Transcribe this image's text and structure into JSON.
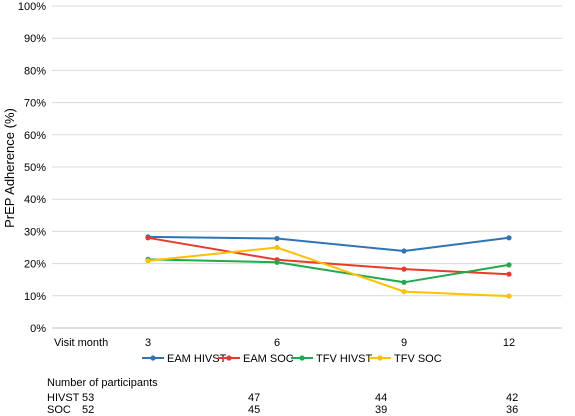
{
  "chart_data": {
    "type": "line",
    "title": "",
    "xlabel": "Visit month",
    "ylabel": "PrEP Adherence (%)",
    "categories": [
      "3",
      "6",
      "9",
      "12"
    ],
    "ylim": [
      0,
      100
    ],
    "yticks": [
      0,
      10,
      20,
      30,
      40,
      50,
      60,
      70,
      80,
      90,
      100
    ],
    "ytick_suffix": "%",
    "grid": "horizontal",
    "legend_position": "bottom",
    "series": [
      {
        "name": "EAM HIVST",
        "color": "#2E75B6",
        "values": [
          28.3,
          27.8,
          23.9,
          28.0
        ]
      },
      {
        "name": "EAM SOC",
        "color": "#E8392B",
        "values": [
          28.0,
          21.2,
          18.3,
          16.7
        ]
      },
      {
        "name": "TFV HIVST",
        "color": "#1FAA4B",
        "values": [
          21.3,
          20.4,
          14.2,
          19.6
        ]
      },
      {
        "name": "TFV SOC",
        "color": "#FFC000",
        "values": [
          20.9,
          25.0,
          11.3,
          9.9
        ]
      }
    ]
  },
  "participants": {
    "title": "Number of participants",
    "rows": [
      {
        "label": "HIVST",
        "values": [
          "53",
          "47",
          "44",
          "42"
        ]
      },
      {
        "label": "SOC",
        "values": [
          "52",
          "45",
          "39",
          "36"
        ]
      }
    ]
  }
}
